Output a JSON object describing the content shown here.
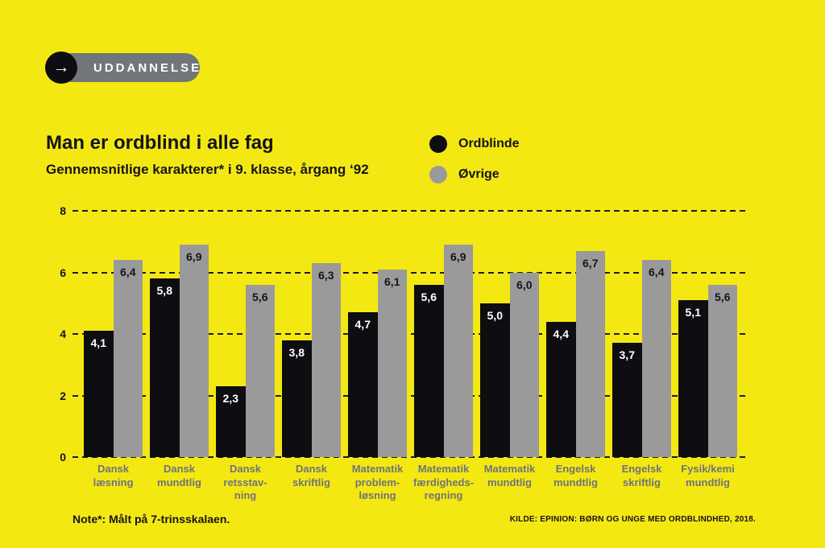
{
  "page": {
    "background_color": "#F4E813"
  },
  "badge": {
    "label": "UDDANNELSE",
    "arrow_icon": "→",
    "pill_color": "#71767A",
    "circle_color": "#0E0D11"
  },
  "header": {
    "title": "Man er ordblind i alle fag",
    "subtitle": "Gennemsnitlige karakterer* i 9. klasse, årgang ‘92"
  },
  "legend": {
    "items": [
      {
        "label": "Ordblinde",
        "color": "#0E0D11"
      },
      {
        "label": "Øvrige",
        "color": "#9A9A9A"
      }
    ]
  },
  "chart_data": {
    "type": "bar",
    "title": "Man er ordblind i alle fag",
    "subtitle": "Gennemsnitlige karakterer* i 9. klasse, årgang ‘92",
    "categories": [
      "Dansk\nlæsning",
      "Dansk\nmundtlig",
      "Dansk\nretsstav-\nning",
      "Dansk\nskriftlig",
      "Matematik\nproblem-\nløsning",
      "Matematik\nfærdigheds-\nregning",
      "Matematik\nmundtlig",
      "Engelsk\nmundtlig",
      "Engelsk\nskriftlig",
      "Fysik/kemi\nmundtlig"
    ],
    "series": [
      {
        "name": "Ordblinde",
        "color": "#0E0D11",
        "value_label_color": "#FFFFFF",
        "values": [
          4.1,
          5.8,
          2.3,
          3.8,
          4.7,
          5.6,
          5.0,
          4.4,
          3.7,
          5.1
        ],
        "value_labels": [
          "4,1",
          "5,8",
          "2,3",
          "3,8",
          "4,7",
          "5,6",
          "5,0",
          "4,4",
          "3,7",
          "5,1"
        ]
      },
      {
        "name": "Øvrige",
        "color": "#9A9A9A",
        "value_label_color": "#15141A",
        "values": [
          6.4,
          6.9,
          5.6,
          6.3,
          6.1,
          6.9,
          6.0,
          6.7,
          6.4,
          5.6
        ],
        "value_labels": [
          "6,4",
          "6,9",
          "5,6",
          "6,3",
          "6,1",
          "6,9",
          "6,0",
          "6,7",
          "6,4",
          "5,6"
        ]
      }
    ],
    "xlabel": "",
    "ylabel": "",
    "ylim": [
      0,
      8
    ],
    "yticks": [
      0,
      2,
      4,
      6,
      8
    ],
    "grid": "horizontal-dashed",
    "legend_position": "top-right"
  },
  "footer": {
    "note": "Note*: Målt på 7-trinsskalaen.",
    "source": "KILDE: EPINION: BØRN OG UNGE MED ORDBLINDHED, 2018."
  }
}
